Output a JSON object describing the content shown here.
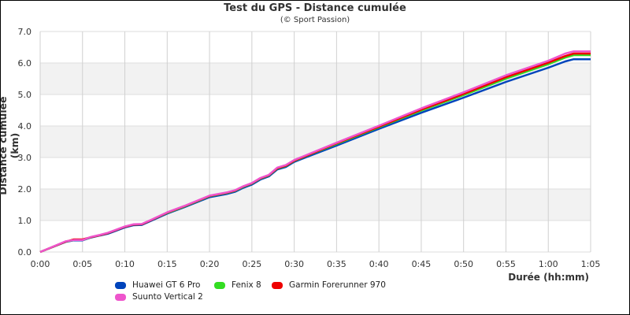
{
  "chart_data": {
    "type": "line",
    "title": "Test du GPS - Distance cumulée",
    "subtitle": "(© Sport Passion)",
    "xlabel": "Durée (hh:mm)",
    "ylabel": "Distance cumulée (km)",
    "xlim": [
      0,
      65
    ],
    "ylim": [
      0,
      7
    ],
    "grid": true,
    "legend_position": "bottom",
    "x_ticks": [
      "0:00",
      "0:05",
      "0:10",
      "0:15",
      "0:20",
      "0:25",
      "0:30",
      "0:35",
      "0:40",
      "0:45",
      "0:50",
      "0:55",
      "1:00",
      "1:05"
    ],
    "y_ticks": [
      "0.0",
      "1.0",
      "2.0",
      "3.0",
      "4.0",
      "5.0",
      "6.0",
      "7.0"
    ],
    "x": [
      0,
      3,
      4,
      5,
      6,
      7,
      8,
      9,
      10,
      11,
      12,
      13,
      15,
      17,
      20,
      22,
      23,
      24,
      25,
      26,
      27,
      28,
      29,
      30,
      32,
      35,
      40,
      45,
      50,
      55,
      60,
      62,
      63,
      65
    ],
    "series": [
      {
        "name": "Huawei GT 6 Pro",
        "color": "#0044bb",
        "values": [
          0,
          0.32,
          0.37,
          0.37,
          0.46,
          0.52,
          0.58,
          0.68,
          0.78,
          0.85,
          0.86,
          0.98,
          1.22,
          1.42,
          1.74,
          1.84,
          1.91,
          2.04,
          2.14,
          2.3,
          2.4,
          2.62,
          2.7,
          2.86,
          3.07,
          3.38,
          3.91,
          4.42,
          4.9,
          5.4,
          5.85,
          6.05,
          6.12,
          6.12
        ]
      },
      {
        "name": "Fenix 8",
        "color": "#33dd22",
        "values": [
          0,
          0.33,
          0.38,
          0.38,
          0.47,
          0.53,
          0.6,
          0.7,
          0.8,
          0.87,
          0.88,
          1.0,
          1.24,
          1.44,
          1.77,
          1.87,
          1.94,
          2.07,
          2.17,
          2.33,
          2.43,
          2.65,
          2.73,
          2.89,
          3.11,
          3.43,
          3.96,
          4.49,
          4.98,
          5.5,
          5.96,
          6.17,
          6.25,
          6.25
        ]
      },
      {
        "name": "Garmin Forerunner 970",
        "color": "#ee0000",
        "values": [
          0,
          0.33,
          0.4,
          0.4,
          0.47,
          0.53,
          0.6,
          0.7,
          0.8,
          0.87,
          0.88,
          1.0,
          1.25,
          1.45,
          1.78,
          1.88,
          1.95,
          2.08,
          2.18,
          2.34,
          2.44,
          2.66,
          2.74,
          2.9,
          3.12,
          3.45,
          3.98,
          4.52,
          5.02,
          5.55,
          6.01,
          6.22,
          6.3,
          6.3
        ]
      },
      {
        "name": "Suunto Vertical 2",
        "color": "#ee55cc",
        "values": [
          0,
          0.34,
          0.38,
          0.38,
          0.48,
          0.54,
          0.61,
          0.71,
          0.81,
          0.88,
          0.89,
          1.01,
          1.26,
          1.46,
          1.79,
          1.89,
          1.96,
          2.09,
          2.19,
          2.35,
          2.45,
          2.68,
          2.76,
          2.92,
          3.14,
          3.47,
          4.01,
          4.56,
          5.07,
          5.61,
          6.07,
          6.3,
          6.37,
          6.37
        ]
      }
    ]
  },
  "legend": {
    "items": [
      {
        "label": "Huawei GT 6 Pro",
        "color": "#0044bb"
      },
      {
        "label": "Fenix 8",
        "color": "#33dd22"
      },
      {
        "label": "Garmin Forerunner 970",
        "color": "#ee0000"
      },
      {
        "label": "Suunto Vertical 2",
        "color": "#ee55cc"
      }
    ]
  }
}
